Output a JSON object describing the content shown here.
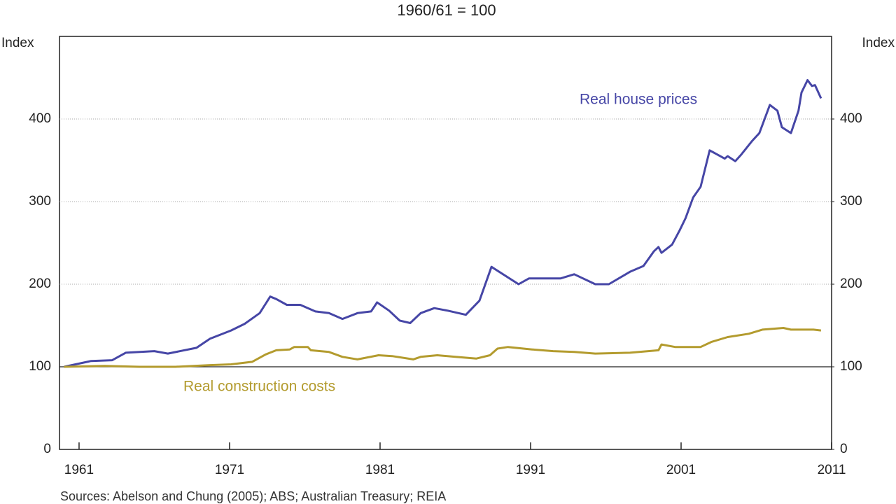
{
  "chart_data": {
    "type": "line",
    "subtitle": "1960/61 = 100",
    "y_label": "Index",
    "y2_label": "Index",
    "source": "Sources:  Abelson and Chung (2005); ABS; Australian Treasury; REIA",
    "xlim": [
      1959.7,
      2011
    ],
    "xticks": [
      1961,
      1971,
      1981,
      1991,
      2001,
      2011
    ],
    "ylim": [
      0,
      500
    ],
    "yticks": [
      0,
      100,
      200,
      300,
      400
    ],
    "y2lim": [
      0,
      500
    ],
    "y2ticks": [
      0,
      100,
      200,
      300,
      400
    ],
    "grid": true,
    "reference_line": 100,
    "series": [
      {
        "name": "Real house prices",
        "color": "#4646a6",
        "x": [
          1960.0,
          1961.8,
          1963.2,
          1964.1,
          1966.0,
          1966.9,
          1968.8,
          1969.7,
          1971.1,
          1972.0,
          1973.0,
          1973.7,
          1974.1,
          1974.8,
          1975.7,
          1976.7,
          1977.6,
          1978.5,
          1979.5,
          1980.4,
          1980.8,
          1981.6,
          1982.3,
          1983.0,
          1983.7,
          1984.6,
          1985.5,
          1986.7,
          1987.6,
          1988.4,
          1990.2,
          1990.9,
          1993.0,
          1993.9,
          1995.3,
          1996.2,
          1997.6,
          1998.5,
          1999.2,
          1999.5,
          1999.7,
          2000.4,
          2000.9,
          2001.3,
          2001.8,
          2002.3,
          2002.9,
          2003.4,
          2003.9,
          2004.1,
          2004.6,
          2005.0,
          2005.7,
          2006.2,
          2006.9,
          2007.4,
          2007.7,
          2008.3,
          2008.8,
          2009.0,
          2009.4,
          2009.7,
          2009.9,
          2010.3
        ],
        "values": [
          100,
          107,
          108,
          117,
          119,
          116,
          123,
          134,
          144,
          152,
          165,
          185,
          182,
          175,
          175,
          167,
          165,
          158,
          165,
          167,
          178,
          168,
          156,
          153,
          165,
          171,
          168,
          163,
          180,
          221,
          200,
          207,
          207,
          212,
          200,
          200,
          215,
          222,
          240,
          245,
          238,
          248,
          265,
          280,
          305,
          318,
          362,
          357,
          352,
          355,
          349,
          357,
          373,
          383,
          417,
          410,
          390,
          383,
          410,
          432,
          447,
          440,
          441,
          425
        ]
      },
      {
        "name": "Real construction costs",
        "color": "#b39b2e",
        "x": [
          1960.0,
          1962.7,
          1965.0,
          1967.4,
          1969.7,
          1971.1,
          1972.5,
          1973.4,
          1974.1,
          1975.0,
          1975.3,
          1976.2,
          1976.4,
          1977.6,
          1978.5,
          1979.5,
          1980.9,
          1981.8,
          1983.2,
          1983.7,
          1984.8,
          1986.0,
          1987.4,
          1988.3,
          1988.8,
          1989.5,
          1991.1,
          1992.5,
          1993.9,
          1995.3,
          1997.6,
          1999.5,
          1999.7,
          2000.6,
          2002.3,
          2003.0,
          2004.1,
          2005.5,
          2006.4,
          2007.8,
          2008.3,
          2009.8,
          2010.3
        ],
        "values": [
          100,
          101,
          100,
          100,
          102,
          103,
          106,
          115,
          120,
          121,
          124,
          124,
          120,
          118,
          112,
          109,
          114,
          113,
          109,
          112,
          114,
          112,
          110,
          114,
          122,
          124,
          121,
          119,
          118,
          116,
          117,
          120,
          127,
          124,
          124,
          130,
          136,
          140,
          145,
          147,
          145,
          145,
          144
        ]
      }
    ]
  }
}
